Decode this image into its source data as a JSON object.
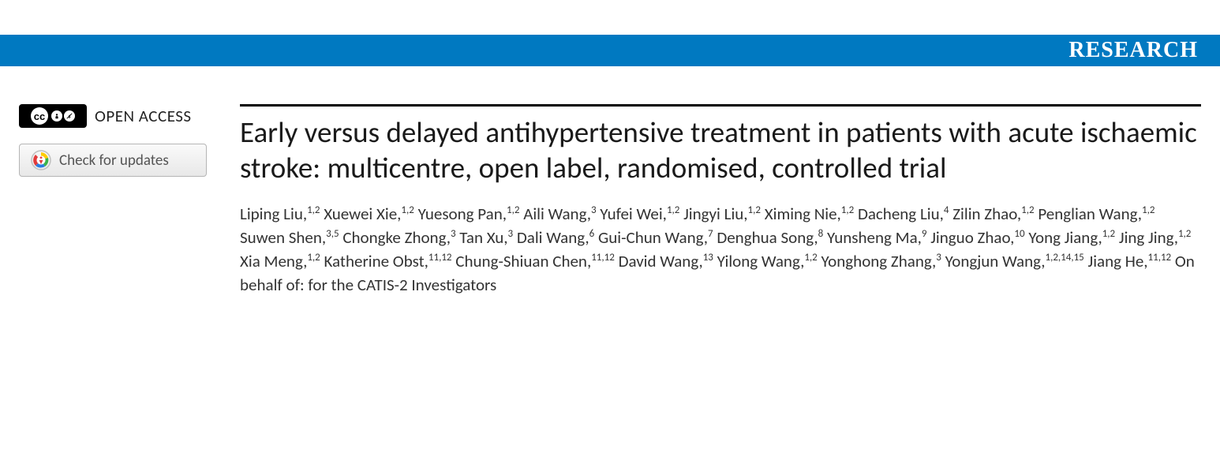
{
  "banner": {
    "label": "RESEARCH",
    "bg_color": "#0079c1"
  },
  "left": {
    "open_access_label": "OPEN ACCESS",
    "cc_text": "cc",
    "updates_button_label": "Check for updates"
  },
  "article": {
    "title": "Early versus delayed antihypertensive treatment in patients with acute ischaemic stroke: multicentre, open label, randomised, controlled trial",
    "authors": [
      {
        "name": "Liping Liu",
        "aff": "1,2"
      },
      {
        "name": "Xuewei Xie",
        "aff": "1,2"
      },
      {
        "name": "Yuesong Pan",
        "aff": "1,2"
      },
      {
        "name": "Aili Wang",
        "aff": "3"
      },
      {
        "name": "Yufei Wei",
        "aff": "1,2"
      },
      {
        "name": "Jingyi Liu",
        "aff": "1,2"
      },
      {
        "name": "Ximing Nie",
        "aff": "1,2"
      },
      {
        "name": "Dacheng Liu",
        "aff": "4"
      },
      {
        "name": "Zilin Zhao",
        "aff": "1,2"
      },
      {
        "name": "Penglian Wang",
        "aff": "1,2"
      },
      {
        "name": "Suwen Shen",
        "aff": "3,5"
      },
      {
        "name": "Chongke Zhong",
        "aff": "3"
      },
      {
        "name": "Tan Xu",
        "aff": "3"
      },
      {
        "name": "Dali Wang",
        "aff": "6"
      },
      {
        "name": "Gui-Chun Wang",
        "aff": "7"
      },
      {
        "name": "Denghua Song",
        "aff": "8"
      },
      {
        "name": "Yunsheng Ma",
        "aff": "9"
      },
      {
        "name": "Jinguo Zhao",
        "aff": "10"
      },
      {
        "name": "Yong Jiang",
        "aff": "1,2"
      },
      {
        "name": "Jing Jing",
        "aff": "1,2"
      },
      {
        "name": "Xia Meng",
        "aff": "1,2"
      },
      {
        "name": "Katherine Obst",
        "aff": "11,12"
      },
      {
        "name": "Chung-Shiuan Chen",
        "aff": "11,12"
      },
      {
        "name": "David Wang",
        "aff": "13"
      },
      {
        "name": "Yilong Wang",
        "aff": "1,2"
      },
      {
        "name": "Yonghong Zhang",
        "aff": "3"
      },
      {
        "name": "Yongjun Wang",
        "aff": "1,2,14,15"
      },
      {
        "name": "Jiang He",
        "aff": "11,12"
      }
    ],
    "on_behalf": "On behalf of: for the CATIS-2 Investigators"
  },
  "colors": {
    "title_color": "#1a1a1a",
    "body_color": "#333333",
    "rule_color": "#000000"
  }
}
